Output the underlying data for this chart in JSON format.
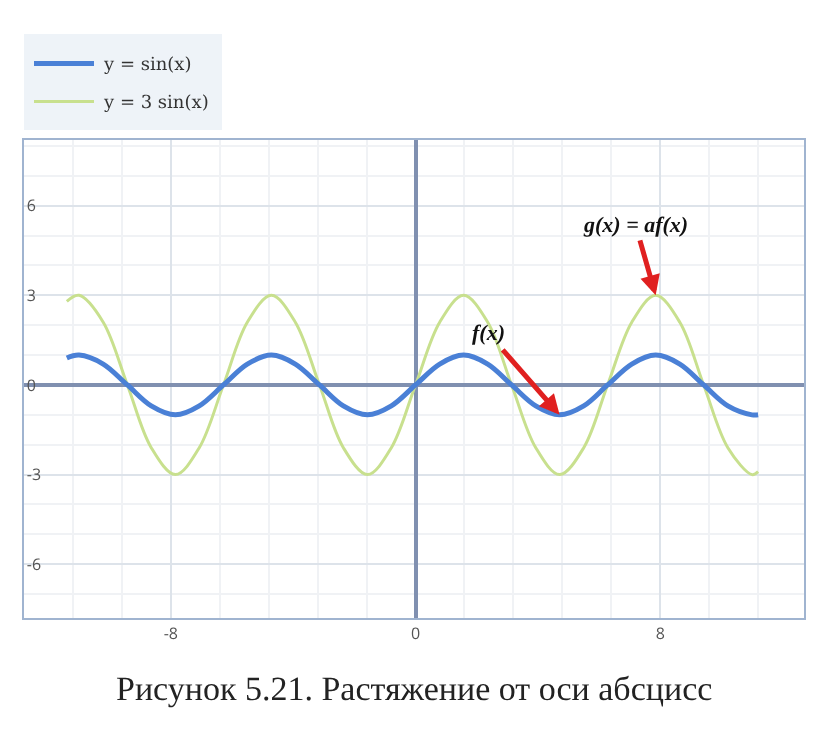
{
  "chart_data": {
    "type": "line",
    "x": [
      -11.4,
      -11.0,
      -10.21,
      -9.42,
      -8.64,
      -7.85,
      -7.07,
      -6.28,
      -5.5,
      -4.71,
      -3.93,
      -3.14,
      -2.36,
      -1.57,
      -0.79,
      0,
      0.79,
      1.57,
      2.36,
      3.14,
      3.93,
      4.71,
      5.5,
      6.28,
      7.07,
      7.85,
      8.64,
      9.42,
      10.21,
      11.0,
      11.2
    ],
    "series": [
      {
        "name": "y = 3 sin(x)",
        "color": "#c8e08e",
        "values": [
          2.8,
          3,
          2.1,
          0,
          -2.1,
          -3,
          -2.1,
          0,
          2.1,
          3,
          2.1,
          0,
          -2.1,
          -3,
          -2.1,
          0,
          2.1,
          3,
          2.1,
          0,
          -2.1,
          -3,
          -2.1,
          0,
          2.1,
          3,
          2.1,
          0,
          -2.1,
          -3,
          -2.9
        ]
      },
      {
        "name": "y = sin(x)",
        "color": "#4a80d6",
        "values": [
          0.9,
          1,
          0.7,
          0,
          -0.7,
          -1,
          -0.7,
          0,
          0.7,
          1,
          0.7,
          0,
          -0.7,
          -1,
          -0.7,
          0,
          0.7,
          1,
          0.7,
          0,
          -0.7,
          -1,
          -0.7,
          0,
          0.7,
          1,
          0.7,
          0,
          -0.7,
          -1,
          -1.0
        ]
      }
    ],
    "xlim": [
      -12.8,
      12.7
    ],
    "xticks": [
      -8,
      0,
      8
    ],
    "ylim": [
      -7.8,
      8.2
    ],
    "yticks": [
      -6,
      -3,
      0,
      3,
      6
    ],
    "grid": true,
    "legend": "top left",
    "annotations": [
      {
        "text": "g(x) = af(x)",
        "x": 7.85,
        "y": 3
      },
      {
        "text": "f(x)",
        "x": 4.71,
        "y": -1
      },
      "Рисунок 5.21. Растяжение от оси абсцисс"
    ]
  }
}
